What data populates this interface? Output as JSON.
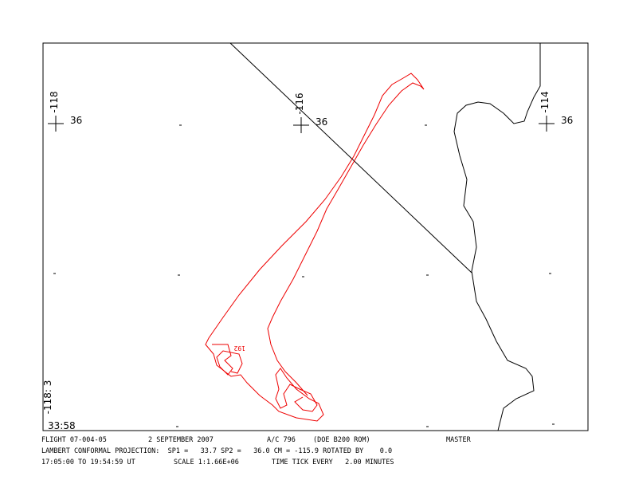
{
  "map": {
    "grid_labels": [
      {
        "lon": "-118",
        "lat": "36"
      },
      {
        "lon": "-116",
        "lat": "36"
      },
      {
        "lon": "-114",
        "lat": "36"
      }
    ],
    "corner_lon": "-118: 3",
    "corner_lat": "33:58",
    "track_label": "192"
  },
  "footer": {
    "line1": [
      "FLIGHT 07-004-05",
      "2 SEPTEMBER 2007",
      "A/C 796",
      "(DOE B200 ROM)",
      "MASTER"
    ],
    "line2": "LAMBERT CONFORMAL PROJECTION:  SP1 =   33.7 SP2 =   36.0 CM = -115.9 ROTATED BY    0.0",
    "line3": [
      "17:05:00 TO 19:54:59 UT",
      "SCALE 1:1.66E+06",
      "TIME TICK EVERY   2.00 MINUTES"
    ]
  }
}
